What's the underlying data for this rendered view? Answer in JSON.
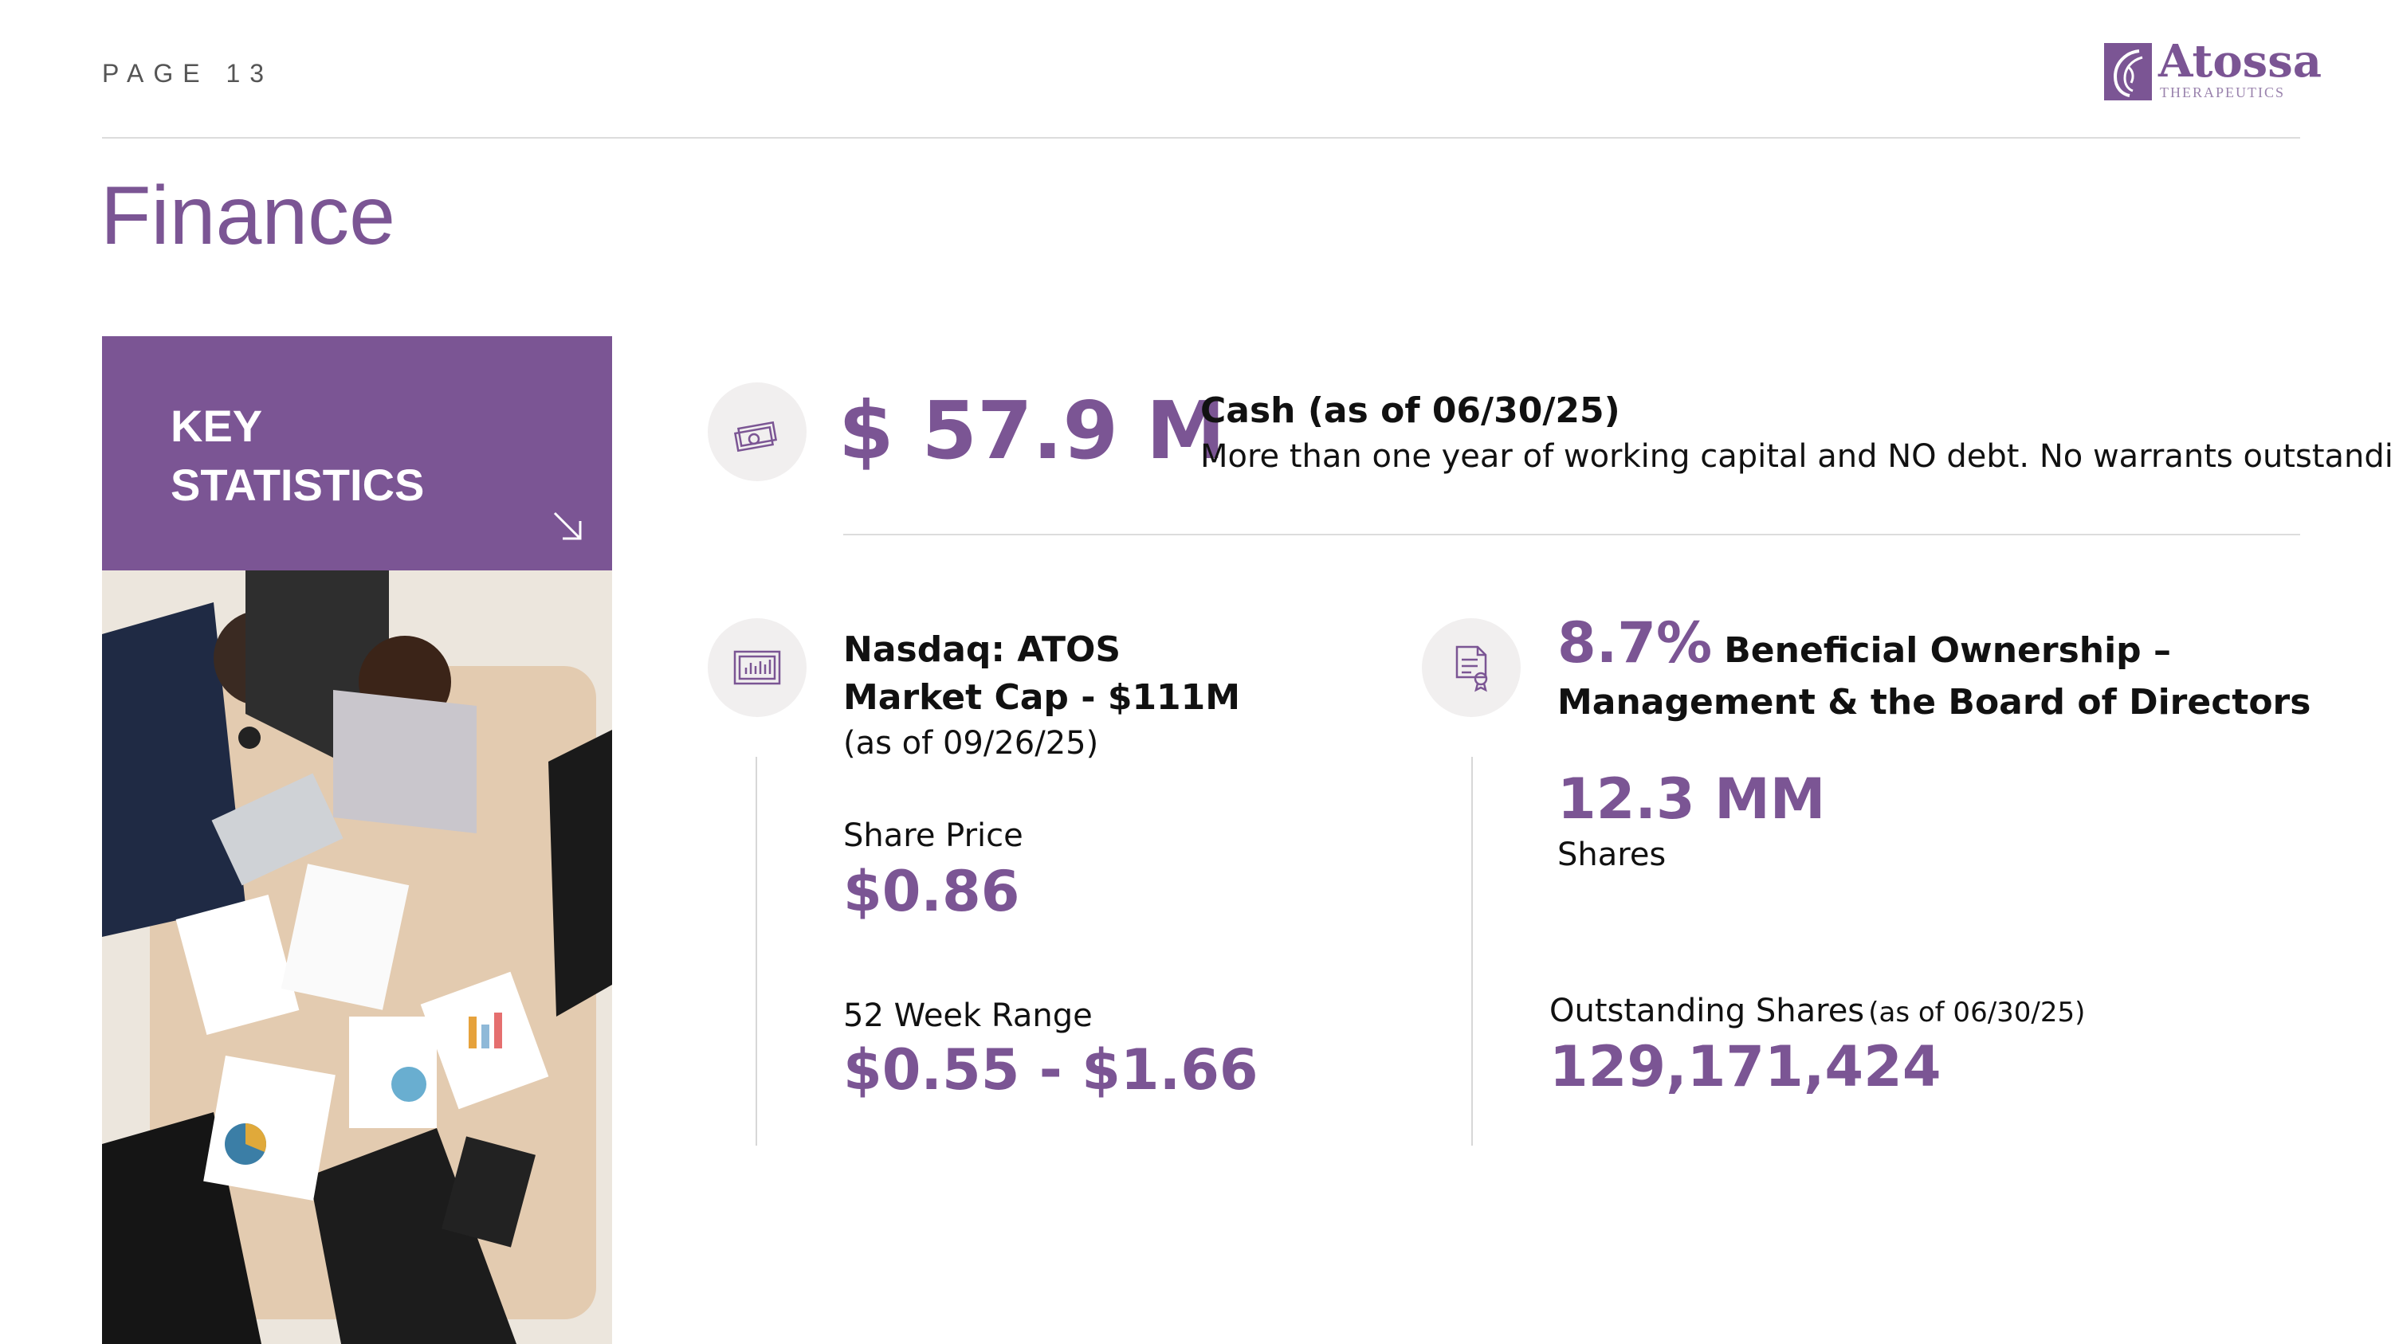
{
  "header": {
    "page_label": "PAGE 13",
    "logo": {
      "name": "Atossa",
      "subtitle": "THERAPEUTICS"
    }
  },
  "title": "Finance",
  "key_box": {
    "line1": "KEY",
    "line2": "STATISTICS"
  },
  "cash": {
    "icon": "money-icon",
    "value": "$ 57.9 M",
    "label": "Cash (as of 06/30/25)",
    "description": "More than one year of working capital and NO debt.  No warrants outstanding"
  },
  "market": {
    "icon": "chart-icon",
    "ticker": "Nasdaq: ATOS",
    "market_cap": "Market Cap - $111M",
    "as_of": "(as of 09/26/25)",
    "share_price_label": "Share Price",
    "share_price_value": "$0.86",
    "range_label": "52 Week Range",
    "range_value": "$0.55 - $1.66"
  },
  "ownership": {
    "icon": "certificate-icon",
    "percent": "8.7%",
    "label_line1": "Beneficial Ownership –",
    "label_line2": "Management & the Board of Directors",
    "shares_value": "12.3 MM",
    "shares_label": "Shares",
    "outstanding_label": "Outstanding Shares",
    "outstanding_as_of": "(as of 06/30/25)",
    "outstanding_value": "129,171,424"
  },
  "colors": {
    "accent": "#7b5594",
    "rule": "#dcdcdc"
  }
}
